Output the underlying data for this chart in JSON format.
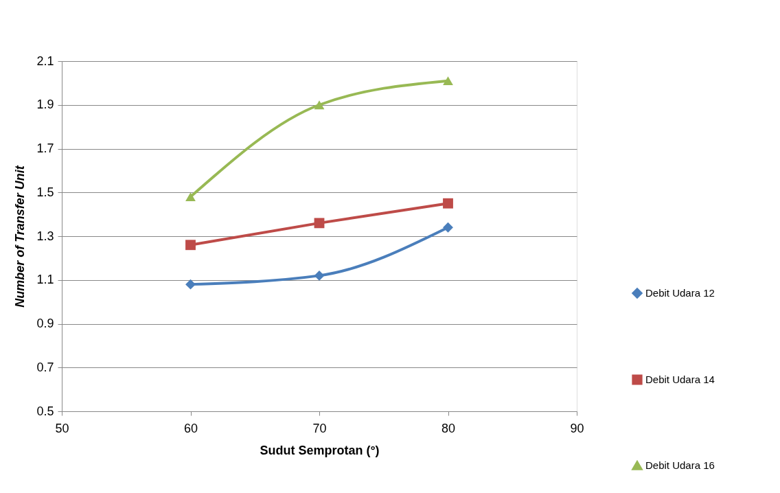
{
  "chart_data": {
    "type": "line",
    "xlabel": "Sudut Semprotan (°)",
    "ylabel": "Number of Transfer Unit",
    "x": [
      60,
      70,
      80
    ],
    "series": [
      {
        "name": "Debit Udara 12",
        "color": "#4a7ebb",
        "marker": "diamond",
        "values": [
          1.08,
          1.12,
          1.34
        ]
      },
      {
        "name": "Debit Udara 14",
        "color": "#be4b48",
        "marker": "square",
        "values": [
          1.26,
          1.36,
          1.45
        ]
      },
      {
        "name": "Debit Udara 16",
        "color": "#98b954",
        "marker": "triangle",
        "values": [
          1.48,
          1.9,
          2.01
        ]
      }
    ],
    "xlim": [
      50,
      90
    ],
    "xticks": [
      50,
      60,
      70,
      80,
      90
    ],
    "ylim": [
      0.5,
      2.1
    ],
    "yticks": [
      0.5,
      0.7,
      0.9,
      1.1,
      1.3,
      1.5,
      1.7,
      1.9,
      2.1
    ],
    "grid": "y",
    "legend": "right",
    "line_style": "solid"
  }
}
